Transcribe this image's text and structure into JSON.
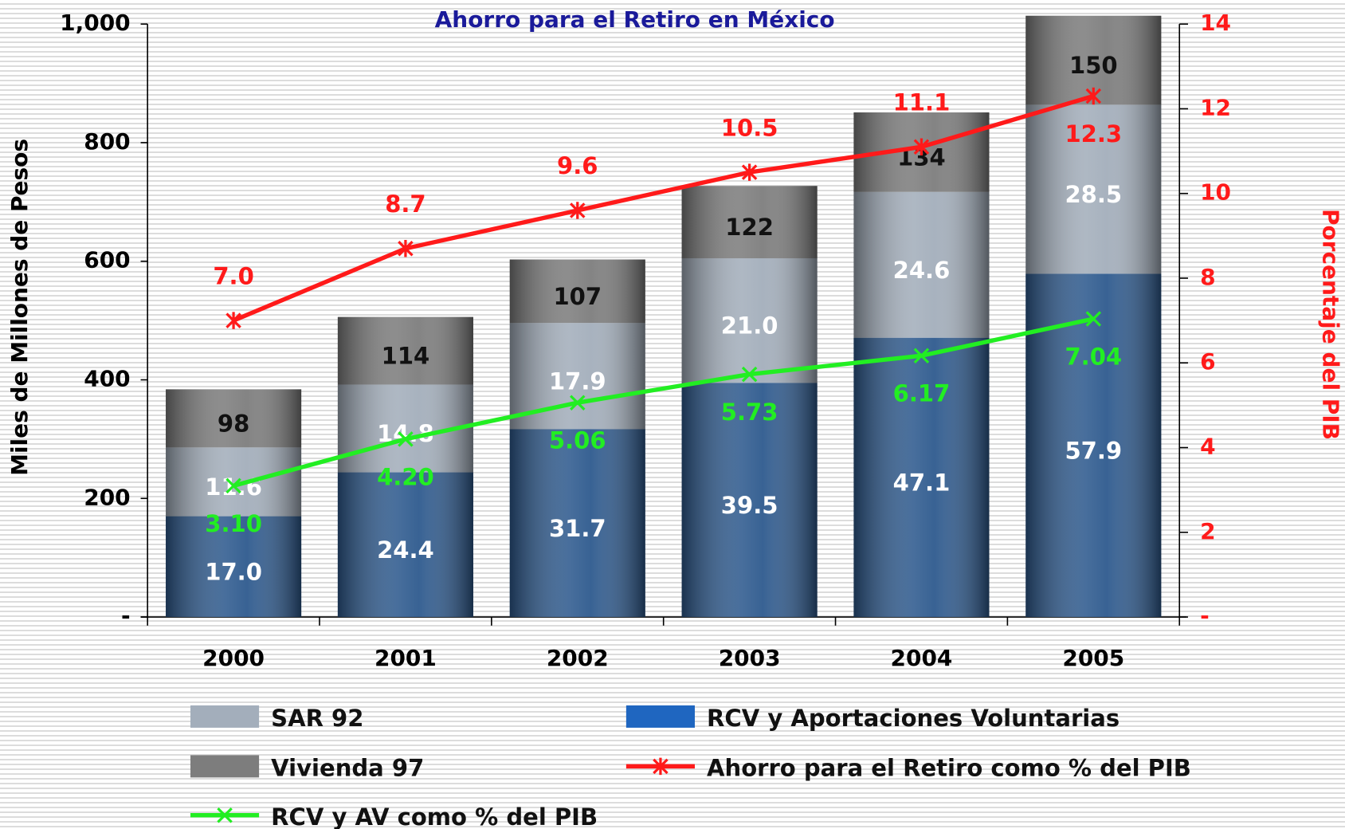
{
  "chart_data": {
    "type": "bar",
    "title": "Ahorro para el Retiro en México",
    "ylabel": "Miles de Millones de Pesos",
    "y2label": "Porcentaje del PIB",
    "categories": [
      "2000",
      "2001",
      "2002",
      "2003",
      "2004",
      "2005"
    ],
    "ylim": [
      0,
      1000
    ],
    "yticks": [
      {
        "value": 0,
        "label": "-"
      },
      200,
      400,
      600,
      800,
      {
        "value": 1000,
        "label": "1,000"
      }
    ],
    "y2lim": [
      0,
      14
    ],
    "y2ticks": [
      {
        "value": 0,
        "label": "-"
      },
      2,
      4,
      6,
      8,
      10,
      12,
      14
    ],
    "series": [
      {
        "name": "RCV y Aportaciones Voluntarias",
        "type": "bar",
        "color": "#2e5a8e",
        "label_color": "#ffffff",
        "values": [
          170,
          244,
          317,
          395,
          471,
          579
        ],
        "value_labels": [
          "17.0",
          "24.4",
          "31.7",
          "39.5",
          "47.1",
          "57.9"
        ]
      },
      {
        "name": "SAR 92",
        "type": "bar",
        "color": "#a3aebb",
        "label_color": "#ffffff",
        "values": [
          116,
          148,
          179,
          210,
          246,
          285
        ],
        "value_labels": [
          "11.6",
          "14.8",
          "17.9",
          "21.0",
          "24.6",
          "28.5"
        ]
      },
      {
        "name": "Vivienda 97",
        "type": "bar",
        "color": "#7d7d7d",
        "label_color": "#111111",
        "values": [
          98,
          114,
          107,
          122,
          134,
          150
        ]
      },
      {
        "name": "Ahorro para el Retiro como %  del PIB",
        "type": "line",
        "axis": "y2",
        "marker": "star",
        "color": "#ff1a1a",
        "values": [
          7.0,
          8.7,
          9.6,
          10.5,
          11.1,
          12.3
        ],
        "value_labels": [
          "7.0",
          "8.7",
          "9.6",
          "10.5",
          "11.1",
          "12.3"
        ]
      },
      {
        "name": "RCV y AV como % del PIB",
        "type": "line",
        "axis": "y2",
        "marker": "x",
        "color": "#22ee22",
        "values": [
          3.1,
          4.2,
          5.06,
          5.73,
          6.17,
          7.04
        ],
        "value_labels": [
          "3.10",
          "4.20",
          "5.06",
          "5.73",
          "6.17",
          "7.04"
        ]
      }
    ]
  }
}
